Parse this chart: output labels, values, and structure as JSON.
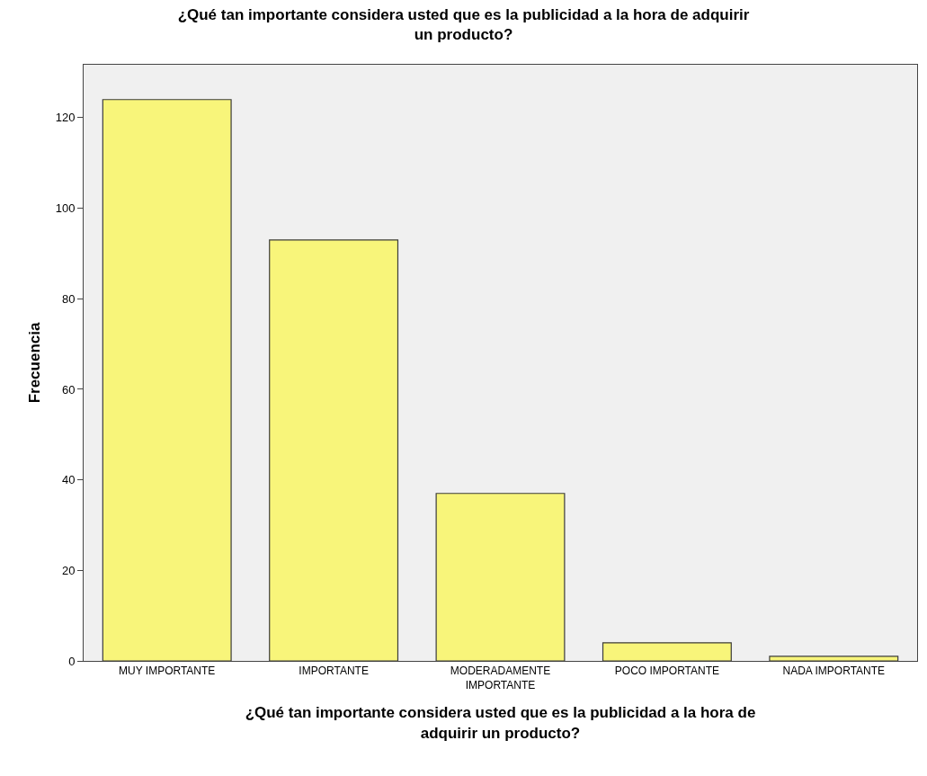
{
  "chart_data": {
    "type": "bar",
    "title": "¿Qué tan importante considera usted que es la publicidad a la hora de adquirir un producto?",
    "xlabel": "¿Qué tan importante considera usted que es la publicidad a la hora de adquirir un producto?",
    "ylabel": "Frecuencia",
    "categories": [
      "MUY IMPORTANTE",
      "IMPORTANTE",
      "MODERADAMENTE IMPORTANTE",
      "POCO IMPORTANTE",
      "NADA IMPORTANTE"
    ],
    "values": [
      124,
      93,
      37,
      4,
      1
    ],
    "color": "#f8f57a",
    "ylim": [
      0,
      131.7
    ],
    "yticks": [
      0,
      20,
      40,
      60,
      80,
      100,
      120
    ]
  }
}
